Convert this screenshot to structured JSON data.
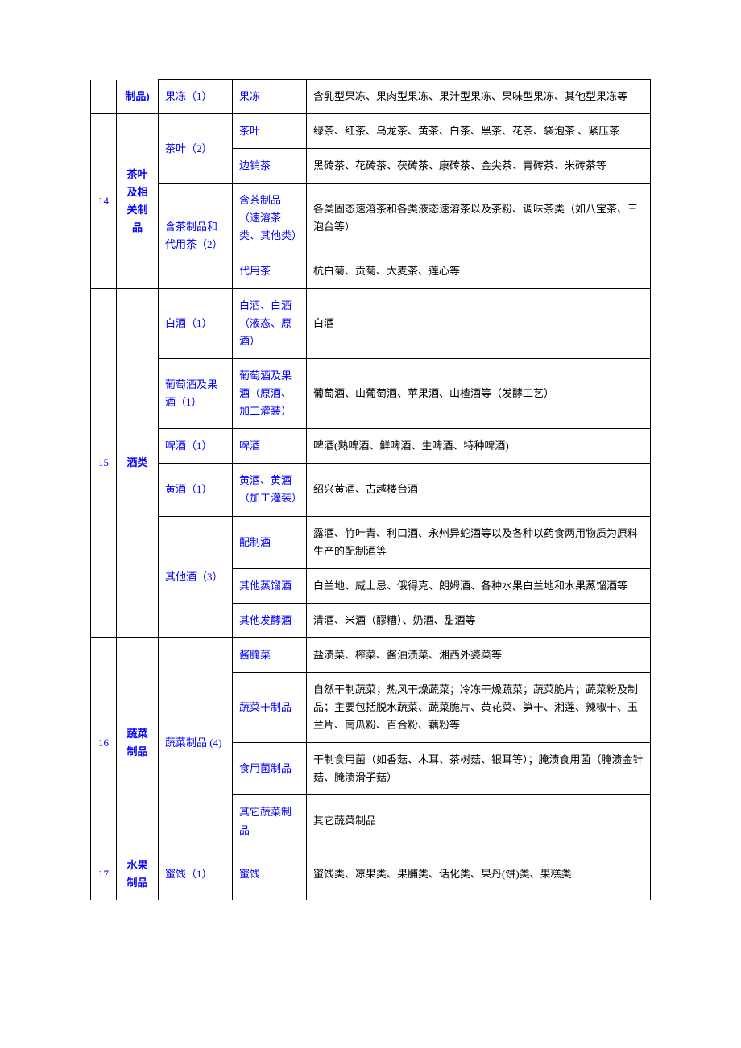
{
  "rows": [
    {
      "num": "",
      "cat": "制品)",
      "sub": "果冻（1）",
      "item": "果冻",
      "desc": "含乳型果冻、果肉型果冻、果汁型果冻、果味型果冻、其他型果冻等"
    },
    {
      "num": "14",
      "cat": "茶叶及相关制品",
      "sub": "茶叶（2）",
      "item": "茶叶",
      "desc": "绿茶、红茶、乌龙茶、黄茶、白茶、黑茶、花茶、袋泡茶 、紧压茶"
    },
    {
      "item": "边销茶",
      "desc": "黑砖茶、花砖茶、茯砖茶、康砖茶、金尖茶、青砖茶、米砖茶等"
    },
    {
      "sub": "含茶制品和代用茶（2）",
      "item": "含茶制品（速溶茶类、其他类）",
      "desc": "各类固态速溶茶和各类液态速溶茶以及茶粉、调味茶类（如八宝茶、三泡台等）"
    },
    {
      "item": "代用茶",
      "desc": "杭白菊、贡菊、大麦茶、莲心等"
    },
    {
      "num": "15",
      "cat": "酒类",
      "sub": "白酒（1）",
      "item": "白酒、白酒（液态、原酒）",
      "desc": "白酒"
    },
    {
      "sub": "葡萄酒及果酒（1）",
      "item": "葡萄酒及果酒（原酒、加工灌装）",
      "desc": "葡萄酒、山葡萄酒、苹果酒、山楂酒等（发酵工艺）"
    },
    {
      "sub": "啤酒（1）",
      "item": "啤酒",
      "desc": "啤酒(熟啤酒、鲜啤酒、生啤酒、特种啤酒)"
    },
    {
      "sub": "黄酒（1）",
      "item": "黄酒、黄酒（加工灌装）",
      "desc": "绍兴黄酒、古越楼台酒"
    },
    {
      "sub": "其他酒（3）",
      "item": "配制酒",
      "desc": "露酒、竹叶青、利口酒、永州异蛇酒等以及各种以药食两用物质为原料生产的配制酒等"
    },
    {
      "item": "其他蒸馏酒",
      "desc": "白兰地、威士忌、俄得克、朗姆酒、各种水果白兰地和水果蒸馏酒等"
    },
    {
      "item": "其他发酵酒",
      "desc": "清酒、米酒（醪糟）、奶酒、甜酒等"
    },
    {
      "num": "16",
      "cat": "蔬菜制品",
      "sub": "蔬菜制品 (4)",
      "item": "酱腌菜",
      "desc": "盐渍菜、榨菜、酱油渍菜、湘西外婆菜等"
    },
    {
      "item": "蔬菜干制品",
      "desc": "自然干制蔬菜；热风干燥蔬菜；冷冻干燥蔬菜；蔬菜脆片；蔬菜粉及制品；主要包括脱水蔬菜、蔬菜脆片、黄花菜、笋干、湘莲、辣椒干、玉兰片、南瓜粉、百合粉、藕粉等"
    },
    {
      "item": "食用菌制品",
      "desc": "干制食用菌（如香菇、木耳、茶树菇、银耳等）；腌渍食用菌（腌渍金针菇、腌渍滑子菇）"
    },
    {
      "item": "其它蔬菜制品",
      "desc": "其它蔬菜制品"
    },
    {
      "num": "17",
      "cat": "水果制品",
      "sub": "蜜饯（1）",
      "item": "蜜饯",
      "desc": "蜜饯类、凉果类、果脯类、话化类、果丹(饼)类、果糕类"
    }
  ]
}
